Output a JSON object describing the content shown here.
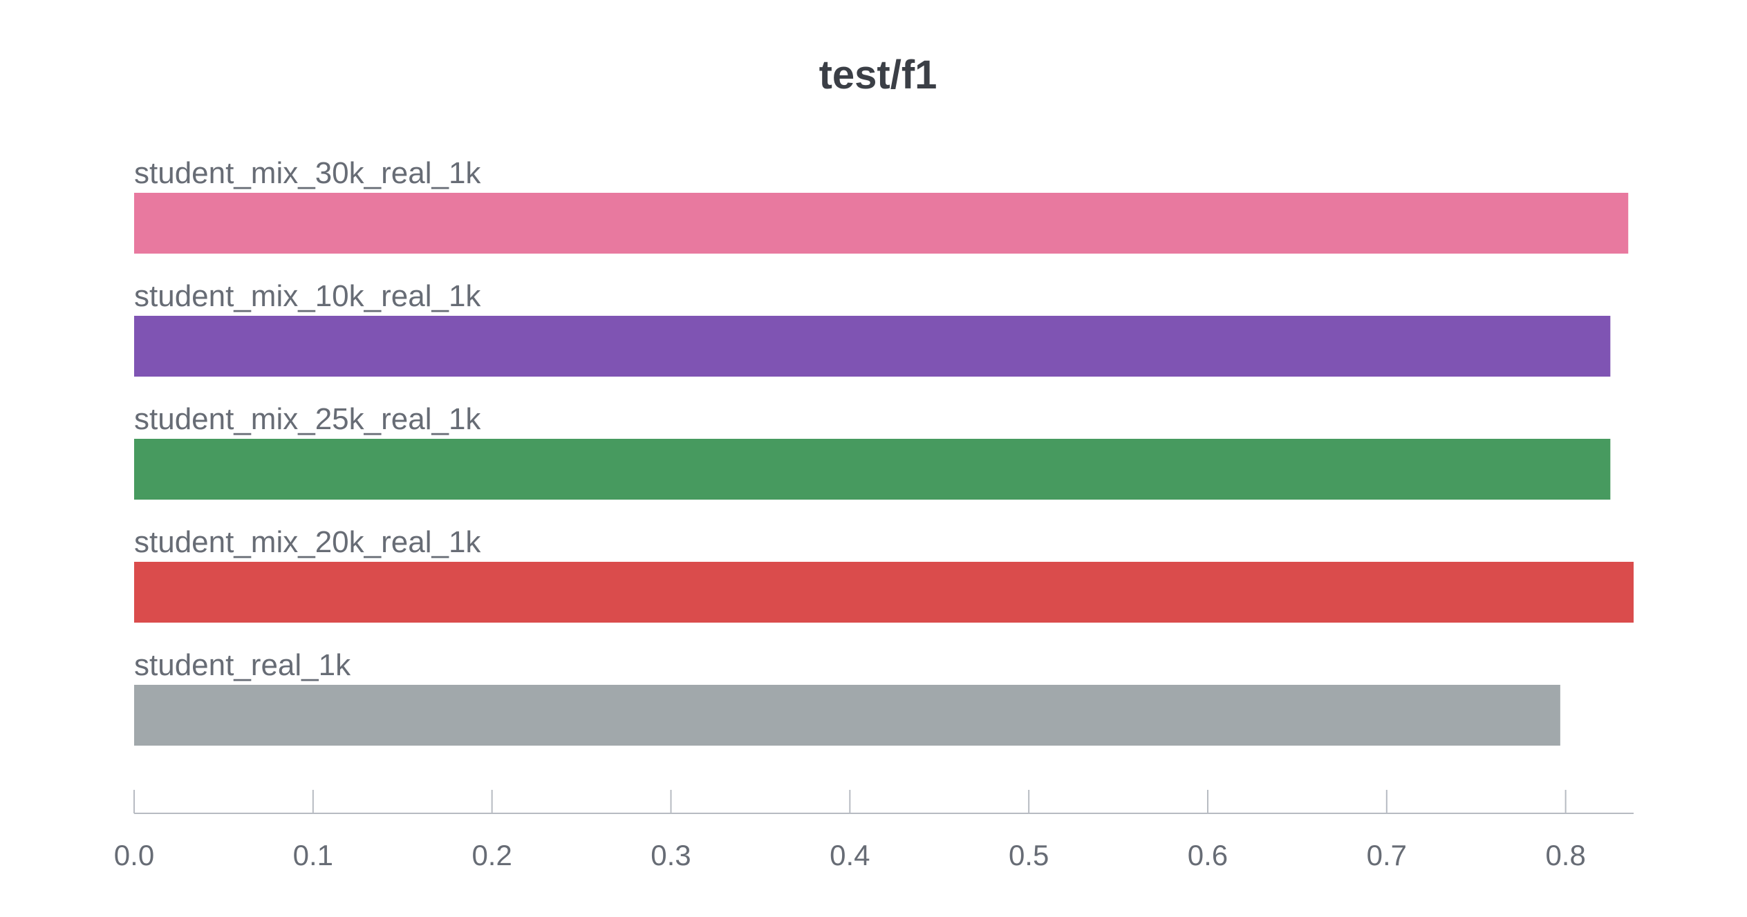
{
  "chart_data": {
    "type": "bar",
    "orientation": "horizontal",
    "title": "test/f1",
    "xlabel": "",
    "ylabel": "",
    "xlim": [
      0,
      0.838
    ],
    "grid": false,
    "categories": [
      "student_mix_30k_real_1k",
      "student_mix_10k_real_1k",
      "student_mix_25k_real_1k",
      "student_mix_20k_real_1k",
      "student_real_1k"
    ],
    "values": [
      0.835,
      0.825,
      0.825,
      0.838,
      0.797
    ],
    "colors": [
      "#e8799f",
      "#7f54b3",
      "#479a5f",
      "#da4c4c",
      "#a1a8ab"
    ],
    "x_ticks": [
      "0.0",
      "0.1",
      "0.2",
      "0.3",
      "0.4",
      "0.5",
      "0.6",
      "0.7",
      "0.8"
    ]
  }
}
